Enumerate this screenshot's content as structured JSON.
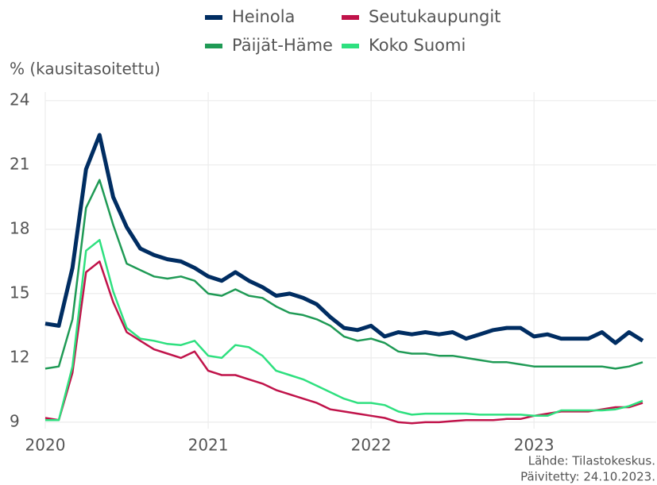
{
  "chart_data": {
    "type": "line",
    "y_label": "% (kausitasoitettu)",
    "source": "Lähde: Tilastokeskus.",
    "updated": "Päivitetty: 24.10.2023.",
    "x": [
      2020,
      2020.083,
      2020.167,
      2020.25,
      2020.333,
      2020.417,
      2020.5,
      2020.583,
      2020.667,
      2020.75,
      2020.833,
      2020.917,
      2021,
      2021.083,
      2021.167,
      2021.25,
      2021.333,
      2021.417,
      2021.5,
      2021.583,
      2021.667,
      2021.75,
      2021.833,
      2021.917,
      2022,
      2022.083,
      2022.167,
      2022.25,
      2022.333,
      2022.417,
      2022.5,
      2022.583,
      2022.667,
      2022.75,
      2022.833,
      2022.917,
      2023,
      2023.083,
      2023.167,
      2023.25,
      2023.333,
      2023.417,
      2023.5,
      2023.583,
      2023.667
    ],
    "series": [
      {
        "name": "Heinola",
        "color": "#002d62",
        "width": 5,
        "values": [
          13.6,
          13.5,
          16.2,
          20.8,
          22.4,
          19.5,
          18.1,
          17.1,
          16.8,
          16.6,
          16.5,
          16.2,
          15.8,
          15.6,
          16.0,
          15.6,
          15.3,
          14.9,
          15.0,
          14.8,
          14.5,
          13.9,
          13.4,
          13.3,
          13.5,
          13.0,
          13.2,
          13.1,
          13.2,
          13.1,
          13.2,
          12.9,
          13.1,
          13.3,
          13.4,
          13.4,
          13.0,
          13.1,
          12.9,
          12.9,
          12.9,
          13.2,
          12.7,
          13.2,
          12.8
        ]
      },
      {
        "name": "Seutukaupungit",
        "color": "#c0134a",
        "width": 2.5,
        "values": [
          9.2,
          9.1,
          11.3,
          16.0,
          16.5,
          14.6,
          13.2,
          12.8,
          12.4,
          12.2,
          12.0,
          12.3,
          11.4,
          11.2,
          11.2,
          11.0,
          10.8,
          10.5,
          10.3,
          10.1,
          9.9,
          9.6,
          9.5,
          9.4,
          9.3,
          9.2,
          9.0,
          8.95,
          9.0,
          9.0,
          9.05,
          9.1,
          9.1,
          9.1,
          9.15,
          9.15,
          9.3,
          9.4,
          9.5,
          9.5,
          9.5,
          9.6,
          9.7,
          9.7,
          9.9
        ]
      },
      {
        "name": "Päijät-Häme",
        "color": "#1f9a55",
        "width": 2.5,
        "values": [
          11.5,
          11.6,
          13.8,
          19.0,
          20.3,
          18.2,
          16.4,
          16.1,
          15.8,
          15.7,
          15.8,
          15.6,
          15.0,
          14.9,
          15.2,
          14.9,
          14.8,
          14.4,
          14.1,
          14.0,
          13.8,
          13.5,
          13.0,
          12.8,
          12.9,
          12.7,
          12.3,
          12.2,
          12.2,
          12.1,
          12.1,
          12.0,
          11.9,
          11.8,
          11.8,
          11.7,
          11.6,
          11.6,
          11.6,
          11.6,
          11.6,
          11.6,
          11.5,
          11.6,
          11.8
        ]
      },
      {
        "name": "Koko Suomi",
        "color": "#2ee07f",
        "width": 2.5,
        "values": [
          9.1,
          9.1,
          11.6,
          17.0,
          17.5,
          15.1,
          13.4,
          12.9,
          12.8,
          12.65,
          12.6,
          12.8,
          12.1,
          12.0,
          12.6,
          12.5,
          12.1,
          11.4,
          11.2,
          11.0,
          10.7,
          10.4,
          10.1,
          9.9,
          9.9,
          9.8,
          9.5,
          9.35,
          9.4,
          9.4,
          9.4,
          9.4,
          9.35,
          9.35,
          9.35,
          9.35,
          9.3,
          9.3,
          9.55,
          9.55,
          9.55,
          9.55,
          9.6,
          9.75,
          10.0
        ]
      }
    ],
    "xlim": [
      2020,
      2023.75
    ],
    "xticks": [
      2020,
      2021,
      2022,
      2023
    ],
    "ylim": [
      8.7,
      24.4
    ],
    "yticks": [
      9,
      12,
      15,
      18,
      21,
      24
    ],
    "grid": true
  }
}
